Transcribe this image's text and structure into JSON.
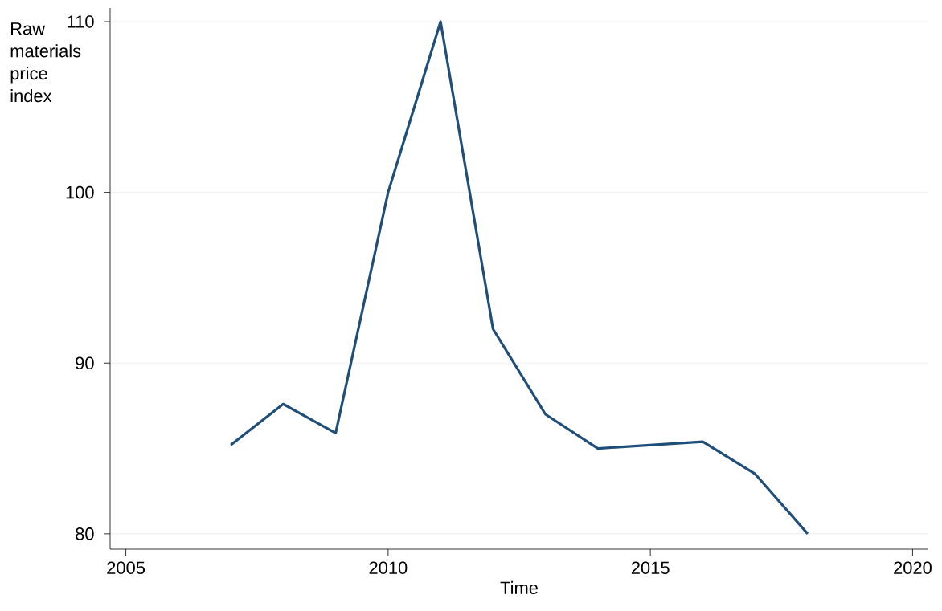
{
  "chart_data": {
    "type": "line",
    "xlabel": "Time",
    "ylabel": "Raw materials price index",
    "x": [
      2007,
      2008,
      2009,
      2010,
      2011,
      2012,
      2013,
      2014,
      2015,
      2016,
      2017,
      2018
    ],
    "series": [
      {
        "color": "#1f4e79",
        "values": [
          85.2,
          87.6,
          85.9,
          100,
          110,
          92.0,
          87.0,
          85.0,
          85.2,
          85.4,
          83.5,
          80.0
        ]
      }
    ],
    "xlim": [
      2004.7,
      2020.3
    ],
    "ylim": [
      79.1,
      110.8
    ],
    "xticks": [
      2005,
      2010,
      2015,
      2020
    ],
    "yticks": [
      80,
      90,
      100,
      110
    ],
    "grid": "y",
    "marker": "none",
    "line_style": "solid"
  }
}
